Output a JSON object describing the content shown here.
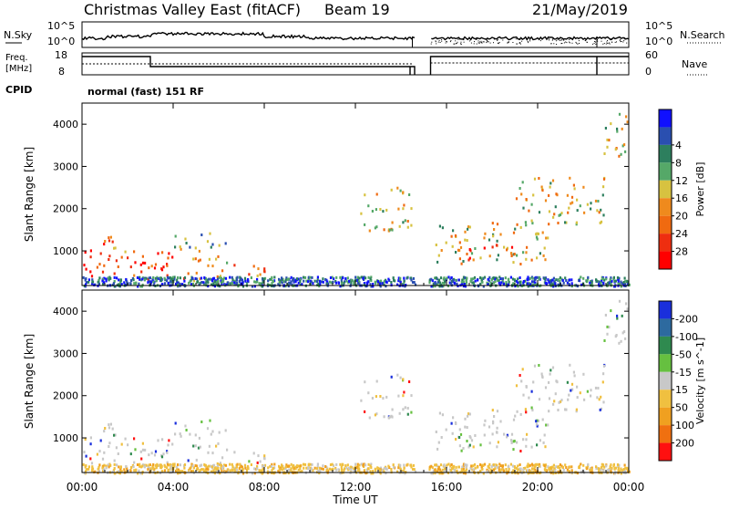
{
  "header": {
    "title": "Christmas Valley East (fitACF)",
    "beam": "Beam 19",
    "date": "21/May/2019"
  },
  "panels": {
    "nsky": {
      "label": "N.Sky",
      "tick_top": "10^5",
      "tick_bottom": "10^0",
      "right_label": "N.Search"
    },
    "freq": {
      "label_line1": "Freq.",
      "label_line2": "[MHz]",
      "tick_top": "18",
      "tick_bottom": "8",
      "right_tick_top": "60",
      "right_tick_bottom": "0",
      "right_label": "Nave"
    },
    "cpid": {
      "label": "CPID",
      "value": "normal (fast) 151 RF"
    }
  },
  "chart_data": [
    {
      "type": "heatmap",
      "name": "power",
      "ylabel": "Slant Range [km]",
      "xlabel": "",
      "ylim": [
        180,
        4500
      ],
      "yticks": [
        1000,
        2000,
        3000,
        4000
      ],
      "x_ticks": [
        "00:00",
        "04:00",
        "08:00",
        "12:00",
        "16:00",
        "20:00",
        "00:00"
      ],
      "colorbar": {
        "label": "Power [dB]",
        "ticks": [
          "4",
          "8",
          "12",
          "16",
          "20",
          "24",
          "28"
        ],
        "colors": [
          "#1010ff",
          "#2a4fb0",
          "#2d7f5e",
          "#55a868",
          "#d7c240",
          "#ef8a1d",
          "#f06a10",
          "#ee2e10",
          "#ff0000"
        ]
      },
      "regions": [
        {
          "t": [
            0.0,
            0.5
          ],
          "r": [
            250,
            1200
          ],
          "level": 8
        },
        {
          "t": [
            0.5,
            2.0
          ],
          "r": [
            400,
            1400
          ],
          "level": 6
        },
        {
          "t": [
            2.0,
            4.5
          ],
          "r": [
            350,
            1100
          ],
          "level": 7
        },
        {
          "t": [
            4.5,
            6.5
          ],
          "r": [
            300,
            900
          ],
          "level": 5
        },
        {
          "t": [
            6.5,
            8.0
          ],
          "r": [
            250,
            700
          ],
          "level": 6
        },
        {
          "t": [
            4.0,
            6.5
          ],
          "r": [
            1000,
            1450
          ],
          "level": 3
        },
        {
          "t": [
            12.2,
            14.5
          ],
          "r": [
            1500,
            2600
          ],
          "level": 4
        },
        {
          "t": [
            15.5,
            20.5
          ],
          "r": [
            700,
            1700
          ],
          "level": 4
        },
        {
          "t": [
            16.5,
            19.0
          ],
          "r": [
            800,
            1200
          ],
          "level": 7
        },
        {
          "t": [
            19.0,
            23.0
          ],
          "r": [
            1600,
            2800
          ],
          "level": 4
        },
        {
          "t": [
            22.8,
            24.0
          ],
          "r": [
            3200,
            4300
          ],
          "level": 4
        }
      ]
    },
    {
      "type": "heatmap",
      "name": "velocity",
      "ylabel": "Slant Range [km]",
      "xlabel": "Time UT",
      "ylim": [
        180,
        4500
      ],
      "yticks": [
        1000,
        2000,
        3000,
        4000
      ],
      "x_ticks": [
        "00:00",
        "04:00",
        "08:00",
        "12:00",
        "16:00",
        "20:00",
        "00:00"
      ],
      "colorbar": {
        "label": "Velocity [m s^-1]",
        "ticks": [
          "200",
          "100",
          "50",
          "15",
          "-15",
          "-50",
          "-100",
          "-200"
        ],
        "colors": [
          "#1a2fdc",
          "#2d6a9f",
          "#2f8a4f",
          "#66c040",
          "#c8c8c8",
          "#f0c040",
          "#f0a020",
          "#f07010",
          "#ff1010"
        ]
      }
    }
  ]
}
